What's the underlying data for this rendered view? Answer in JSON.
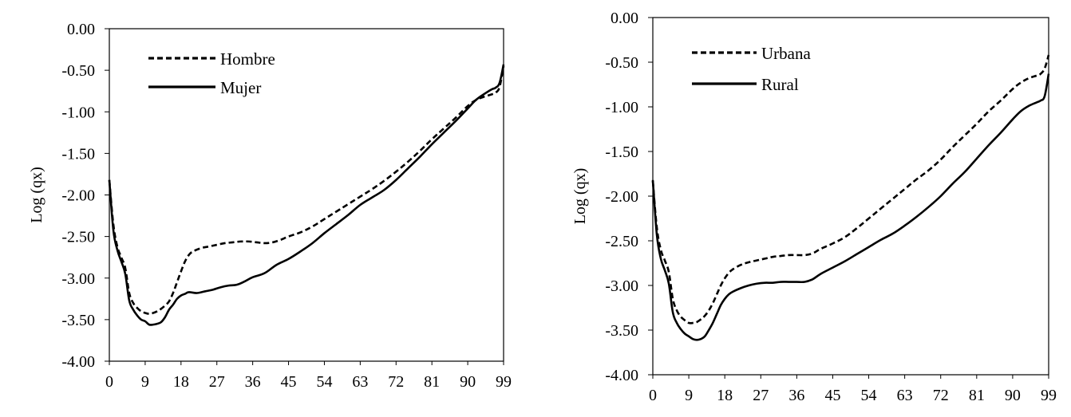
{
  "chart_data": [
    {
      "type": "line",
      "ylabel": "Log (qx)",
      "xlabel": "",
      "xlim": [
        0,
        99
      ],
      "ylim": [
        -4.0,
        0.0
      ],
      "x_ticks": [
        "0",
        "9",
        "18",
        "27",
        "36",
        "45",
        "54",
        "63",
        "72",
        "81",
        "90",
        "99"
      ],
      "y_ticks": [
        "0.00",
        "-0.50",
        "-1.00",
        "-1.50",
        "-2.00",
        "-2.50",
        "-3.00",
        "-3.50",
        "-4.00"
      ],
      "legend_position": "top-left",
      "series": [
        {
          "name": "Hombre",
          "style": "dashed",
          "points": [
            [
              0,
              -1.82
            ],
            [
              1,
              -2.35
            ],
            [
              2,
              -2.62
            ],
            [
              3,
              -2.75
            ],
            [
              4,
              -2.88
            ],
            [
              5,
              -3.18
            ],
            [
              6,
              -3.3
            ],
            [
              7,
              -3.36
            ],
            [
              8,
              -3.4
            ],
            [
              9,
              -3.42
            ],
            [
              10,
              -3.43
            ],
            [
              11,
              -3.42
            ],
            [
              12,
              -3.4
            ],
            [
              13,
              -3.37
            ],
            [
              14,
              -3.33
            ],
            [
              15,
              -3.28
            ],
            [
              16,
              -3.18
            ],
            [
              17,
              -3.05
            ],
            [
              18,
              -2.92
            ],
            [
              19,
              -2.8
            ],
            [
              20,
              -2.72
            ],
            [
              21,
              -2.68
            ],
            [
              23,
              -2.64
            ],
            [
              25,
              -2.62
            ],
            [
              27,
              -2.6
            ],
            [
              29,
              -2.58
            ],
            [
              31,
              -2.57
            ],
            [
              33,
              -2.56
            ],
            [
              35,
              -2.56
            ],
            [
              37,
              -2.57
            ],
            [
              39,
              -2.58
            ],
            [
              41,
              -2.57
            ],
            [
              43,
              -2.54
            ],
            [
              45,
              -2.5
            ],
            [
              48,
              -2.45
            ],
            [
              51,
              -2.38
            ],
            [
              54,
              -2.29
            ],
            [
              57,
              -2.2
            ],
            [
              60,
              -2.11
            ],
            [
              63,
              -2.02
            ],
            [
              66,
              -1.93
            ],
            [
              69,
              -1.83
            ],
            [
              72,
              -1.72
            ],
            [
              75,
              -1.6
            ],
            [
              78,
              -1.47
            ],
            [
              81,
              -1.33
            ],
            [
              84,
              -1.2
            ],
            [
              87,
              -1.07
            ],
            [
              90,
              -0.93
            ],
            [
              92,
              -0.86
            ],
            [
              94,
              -0.82
            ],
            [
              96,
              -0.79
            ],
            [
              97,
              -0.77
            ],
            [
              98,
              -0.7
            ],
            [
              99,
              -0.45
            ]
          ]
        },
        {
          "name": "Mujer",
          "style": "solid",
          "points": [
            [
              0,
              -1.82
            ],
            [
              1,
              -2.42
            ],
            [
              2,
              -2.66
            ],
            [
              3,
              -2.8
            ],
            [
              4,
              -2.95
            ],
            [
              5,
              -3.27
            ],
            [
              6,
              -3.38
            ],
            [
              7,
              -3.45
            ],
            [
              8,
              -3.5
            ],
            [
              9,
              -3.52
            ],
            [
              10,
              -3.56
            ],
            [
              11,
              -3.56
            ],
            [
              12,
              -3.55
            ],
            [
              13,
              -3.53
            ],
            [
              14,
              -3.47
            ],
            [
              15,
              -3.38
            ],
            [
              16,
              -3.32
            ],
            [
              17,
              -3.25
            ],
            [
              18,
              -3.21
            ],
            [
              19,
              -3.19
            ],
            [
              20,
              -3.17
            ],
            [
              22,
              -3.18
            ],
            [
              24,
              -3.16
            ],
            [
              26,
              -3.14
            ],
            [
              28,
              -3.11
            ],
            [
              30,
              -3.09
            ],
            [
              32,
              -3.08
            ],
            [
              34,
              -3.04
            ],
            [
              36,
              -2.99
            ],
            [
              39,
              -2.94
            ],
            [
              42,
              -2.84
            ],
            [
              45,
              -2.77
            ],
            [
              48,
              -2.68
            ],
            [
              51,
              -2.58
            ],
            [
              54,
              -2.46
            ],
            [
              57,
              -2.35
            ],
            [
              60,
              -2.24
            ],
            [
              63,
              -2.12
            ],
            [
              66,
              -2.03
            ],
            [
              69,
              -1.94
            ],
            [
              72,
              -1.82
            ],
            [
              75,
              -1.68
            ],
            [
              78,
              -1.54
            ],
            [
              81,
              -1.39
            ],
            [
              84,
              -1.25
            ],
            [
              87,
              -1.11
            ],
            [
              90,
              -0.96
            ],
            [
              92,
              -0.86
            ],
            [
              94,
              -0.79
            ],
            [
              96,
              -0.73
            ],
            [
              97,
              -0.71
            ],
            [
              98,
              -0.65
            ],
            [
              99,
              -0.43
            ]
          ]
        }
      ]
    },
    {
      "type": "line",
      "ylabel": "Log (qx)",
      "xlabel": "",
      "xlim": [
        0,
        99
      ],
      "ylim": [
        -4.0,
        0.0
      ],
      "x_ticks": [
        "0",
        "9",
        "18",
        "27",
        "36",
        "45",
        "54",
        "63",
        "72",
        "81",
        "90",
        "99"
      ],
      "y_ticks": [
        "0.00",
        "-0.50",
        "-1.00",
        "-1.50",
        "-2.00",
        "-2.50",
        "-3.00",
        "-3.50",
        "-4.00"
      ],
      "legend_position": "top-left",
      "series": [
        {
          "name": "Urbana",
          "style": "dashed",
          "points": [
            [
              0,
              -1.83
            ],
            [
              1,
              -2.35
            ],
            [
              2,
              -2.6
            ],
            [
              3,
              -2.72
            ],
            [
              4,
              -2.85
            ],
            [
              5,
              -3.15
            ],
            [
              6,
              -3.28
            ],
            [
              7,
              -3.35
            ],
            [
              8,
              -3.39
            ],
            [
              9,
              -3.42
            ],
            [
              10,
              -3.42
            ],
            [
              11,
              -3.41
            ],
            [
              12,
              -3.38
            ],
            [
              13,
              -3.34
            ],
            [
              14,
              -3.28
            ],
            [
              15,
              -3.2
            ],
            [
              16,
              -3.1
            ],
            [
              17,
              -3.0
            ],
            [
              18,
              -2.92
            ],
            [
              19,
              -2.86
            ],
            [
              20,
              -2.82
            ],
            [
              22,
              -2.77
            ],
            [
              24,
              -2.74
            ],
            [
              26,
              -2.72
            ],
            [
              28,
              -2.7
            ],
            [
              30,
              -2.68
            ],
            [
              32,
              -2.67
            ],
            [
              34,
              -2.66
            ],
            [
              36,
              -2.66
            ],
            [
              38,
              -2.66
            ],
            [
              40,
              -2.64
            ],
            [
              42,
              -2.59
            ],
            [
              45,
              -2.53
            ],
            [
              48,
              -2.46
            ],
            [
              51,
              -2.36
            ],
            [
              54,
              -2.25
            ],
            [
              57,
              -2.14
            ],
            [
              60,
              -2.03
            ],
            [
              63,
              -1.92
            ],
            [
              66,
              -1.81
            ],
            [
              69,
              -1.71
            ],
            [
              72,
              -1.59
            ],
            [
              75,
              -1.45
            ],
            [
              78,
              -1.32
            ],
            [
              81,
              -1.19
            ],
            [
              84,
              -1.05
            ],
            [
              87,
              -0.93
            ],
            [
              90,
              -0.8
            ],
            [
              92,
              -0.73
            ],
            [
              94,
              -0.68
            ],
            [
              96,
              -0.65
            ],
            [
              97,
              -0.63
            ],
            [
              98,
              -0.57
            ],
            [
              99,
              -0.42
            ]
          ]
        },
        {
          "name": "Rural",
          "style": "solid",
          "points": [
            [
              0,
              -1.82
            ],
            [
              1,
              -2.43
            ],
            [
              2,
              -2.7
            ],
            [
              3,
              -2.83
            ],
            [
              4,
              -2.98
            ],
            [
              5,
              -3.3
            ],
            [
              6,
              -3.42
            ],
            [
              7,
              -3.49
            ],
            [
              8,
              -3.54
            ],
            [
              9,
              -3.57
            ],
            [
              10,
              -3.6
            ],
            [
              11,
              -3.61
            ],
            [
              12,
              -3.6
            ],
            [
              13,
              -3.57
            ],
            [
              14,
              -3.5
            ],
            [
              15,
              -3.42
            ],
            [
              16,
              -3.32
            ],
            [
              17,
              -3.22
            ],
            [
              18,
              -3.15
            ],
            [
              19,
              -3.1
            ],
            [
              20,
              -3.07
            ],
            [
              22,
              -3.03
            ],
            [
              24,
              -3.0
            ],
            [
              26,
              -2.98
            ],
            [
              28,
              -2.97
            ],
            [
              30,
              -2.97
            ],
            [
              32,
              -2.96
            ],
            [
              34,
              -2.96
            ],
            [
              36,
              -2.96
            ],
            [
              38,
              -2.96
            ],
            [
              40,
              -2.93
            ],
            [
              42,
              -2.87
            ],
            [
              45,
              -2.8
            ],
            [
              48,
              -2.73
            ],
            [
              51,
              -2.65
            ],
            [
              54,
              -2.57
            ],
            [
              57,
              -2.49
            ],
            [
              60,
              -2.42
            ],
            [
              63,
              -2.33
            ],
            [
              66,
              -2.23
            ],
            [
              69,
              -2.12
            ],
            [
              72,
              -2.0
            ],
            [
              75,
              -1.86
            ],
            [
              78,
              -1.73
            ],
            [
              81,
              -1.58
            ],
            [
              84,
              -1.43
            ],
            [
              87,
              -1.29
            ],
            [
              90,
              -1.14
            ],
            [
              92,
              -1.05
            ],
            [
              94,
              -0.99
            ],
            [
              96,
              -0.95
            ],
            [
              97,
              -0.93
            ],
            [
              98,
              -0.88
            ],
            [
              99,
              -0.63
            ]
          ]
        }
      ]
    }
  ]
}
